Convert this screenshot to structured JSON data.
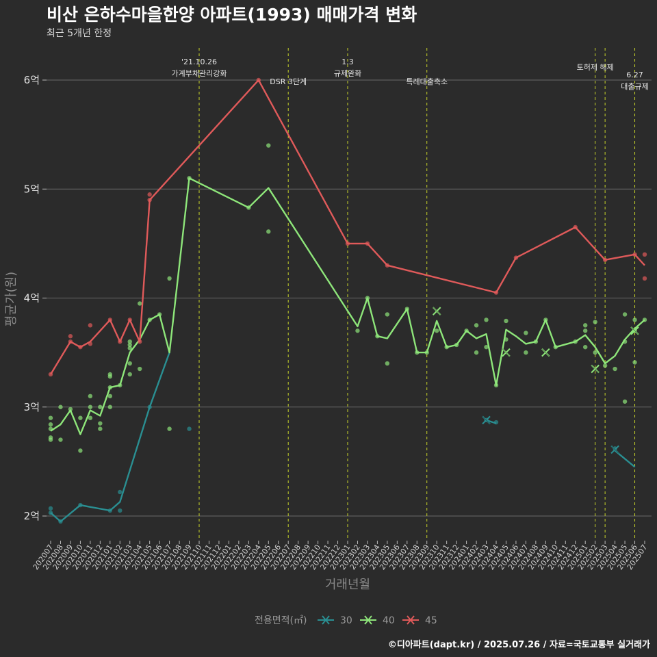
{
  "title": "비산 은하수마을한양 아파트(1993) 매매가격 변화",
  "subtitle": "최근 5개년 한정",
  "caption": "©디아파트(dapt.kr) / 2025.07.26 / 자료=국토교통부 실거래가",
  "chart_data": {
    "type": "line",
    "xlabel": "거래년월",
    "ylabel": "평균가(원)",
    "ylim": [
      1.8,
      6.3
    ],
    "y_ticks": [
      {
        "value": 2,
        "label": "2억"
      },
      {
        "value": 3,
        "label": "3억"
      },
      {
        "value": 4,
        "label": "4억"
      },
      {
        "value": 5,
        "label": "5억"
      },
      {
        "value": 6,
        "label": "6억"
      }
    ],
    "categories": [
      "202007",
      "202008",
      "202009",
      "202010",
      "202011",
      "202012",
      "202101",
      "202102",
      "202103",
      "202104",
      "202105",
      "202106",
      "202107",
      "202108",
      "202109",
      "202110",
      "202111",
      "202112",
      "202201",
      "202202",
      "202203",
      "202204",
      "202205",
      "202206",
      "202207",
      "202208",
      "202209",
      "202210",
      "202211",
      "202212",
      "202301",
      "202302",
      "202303",
      "202304",
      "202305",
      "202306",
      "202307",
      "202308",
      "202309",
      "202310",
      "202311",
      "202312",
      "202401",
      "202402",
      "202403",
      "202404",
      "202405",
      "202406",
      "202407",
      "202408",
      "202409",
      "202410",
      "202411",
      "202412",
      "202501",
      "202502",
      "202503",
      "202504",
      "202505",
      "202506",
      "202507"
    ],
    "legend_title": "전용면적(㎡)",
    "series": [
      {
        "name": "30",
        "color": "#2a8f92",
        "line": [
          [
            "202007",
            2.03
          ],
          [
            "202008",
            1.95
          ],
          [
            "202010",
            2.1
          ],
          [
            "202101",
            2.05
          ],
          [
            "202102",
            2.13
          ],
          [
            "202105",
            3.0
          ],
          [
            "202107",
            3.5
          ]
        ],
        "points": [
          [
            "202007",
            2.07
          ],
          [
            "202007",
            2.03
          ],
          [
            "202008",
            1.95
          ],
          [
            "202010",
            2.1
          ],
          [
            "202101",
            2.05
          ],
          [
            "202102",
            2.22
          ],
          [
            "202102",
            2.05
          ],
          [
            "202105",
            3.0
          ],
          [
            "202109",
            2.8
          ],
          [
            "202403",
            2.88
          ],
          [
            "202404",
            2.86
          ],
          [
            "202504",
            2.62
          ]
        ],
        "line2": [
          [
            "202403",
            2.88
          ],
          [
            "202404",
            2.85
          ]
        ],
        "line3": [
          [
            "202504",
            2.6
          ],
          [
            "202506",
            2.45
          ]
        ],
        "crosses": [
          [
            "202403",
            2.88
          ],
          [
            "202504",
            2.61
          ]
        ]
      },
      {
        "name": "40",
        "color": "#8ee67a",
        "line": [
          [
            "202007",
            2.78
          ],
          [
            "202008",
            2.84
          ],
          [
            "202009",
            2.97
          ],
          [
            "202010",
            2.75
          ],
          [
            "202011",
            2.97
          ],
          [
            "202012",
            2.92
          ],
          [
            "202101",
            3.18
          ],
          [
            "202102",
            3.2
          ],
          [
            "202103",
            3.5
          ],
          [
            "202104",
            3.62
          ],
          [
            "202105",
            3.8
          ],
          [
            "202106",
            3.85
          ],
          [
            "202107",
            3.5
          ],
          [
            "202109",
            5.1
          ],
          [
            "202203",
            4.83
          ],
          [
            "202205",
            5.01
          ],
          [
            "202302",
            3.74
          ],
          [
            "202303",
            4.0
          ],
          [
            "202304",
            3.65
          ],
          [
            "202305",
            3.63
          ],
          [
            "202307",
            3.9
          ],
          [
            "202308",
            3.5
          ],
          [
            "202309",
            3.5
          ],
          [
            "202310",
            3.79
          ],
          [
            "202311",
            3.55
          ],
          [
            "202312",
            3.57
          ],
          [
            "202401",
            3.7
          ],
          [
            "202402",
            3.63
          ],
          [
            "202403",
            3.67
          ],
          [
            "202404",
            3.2
          ],
          [
            "202405",
            3.71
          ],
          [
            "202406",
            3.65
          ],
          [
            "202407",
            3.58
          ],
          [
            "202408",
            3.6
          ],
          [
            "202409",
            3.8
          ],
          [
            "202410",
            3.55
          ],
          [
            "202412",
            3.6
          ],
          [
            "202501",
            3.66
          ],
          [
            "202502",
            3.55
          ],
          [
            "202503",
            3.4
          ],
          [
            "202504",
            3.47
          ],
          [
            "202505",
            3.62
          ],
          [
            "202506",
            3.72
          ],
          [
            "202507",
            3.8
          ]
        ],
        "points": [
          [
            "202007",
            2.9
          ],
          [
            "202007",
            2.84
          ],
          [
            "202007",
            2.8
          ],
          [
            "202007",
            2.72
          ],
          [
            "202007",
            2.7
          ],
          [
            "202008",
            3.0
          ],
          [
            "202008",
            2.7
          ],
          [
            "202009",
            2.98
          ],
          [
            "202010",
            2.9
          ],
          [
            "202010",
            2.6
          ],
          [
            "202011",
            3.1
          ],
          [
            "202011",
            3.0
          ],
          [
            "202011",
            2.9
          ],
          [
            "202012",
            3.0
          ],
          [
            "202012",
            2.85
          ],
          [
            "202012",
            2.8
          ],
          [
            "202101",
            3.3
          ],
          [
            "202101",
            3.28
          ],
          [
            "202101",
            3.18
          ],
          [
            "202101",
            3.1
          ],
          [
            "202101",
            3.0
          ],
          [
            "202102",
            3.2
          ],
          [
            "202103",
            3.6
          ],
          [
            "202103",
            3.57
          ],
          [
            "202103",
            3.54
          ],
          [
            "202103",
            3.4
          ],
          [
            "202103",
            3.3
          ],
          [
            "202104",
            3.95
          ],
          [
            "202104",
            3.35
          ],
          [
            "202105",
            3.8
          ],
          [
            "202106",
            3.85
          ],
          [
            "202107",
            4.18
          ],
          [
            "202107",
            2.8
          ],
          [
            "202109",
            5.1
          ],
          [
            "202203",
            4.83
          ],
          [
            "202205",
            5.4
          ],
          [
            "202205",
            4.61
          ],
          [
            "202302",
            3.7
          ],
          [
            "202303",
            4.0
          ],
          [
            "202304",
            3.65
          ],
          [
            "202305",
            3.85
          ],
          [
            "202305",
            3.4
          ],
          [
            "202307",
            3.9
          ],
          [
            "202308",
            3.5
          ],
          [
            "202309",
            3.5
          ],
          [
            "202310",
            3.7
          ],
          [
            "202311",
            3.55
          ],
          [
            "202312",
            3.57
          ],
          [
            "202401",
            3.7
          ],
          [
            "202402",
            3.75
          ],
          [
            "202402",
            3.5
          ],
          [
            "202403",
            3.8
          ],
          [
            "202403",
            3.55
          ],
          [
            "202404",
            3.2
          ],
          [
            "202405",
            3.79
          ],
          [
            "202405",
            3.62
          ],
          [
            "202407",
            3.68
          ],
          [
            "202407",
            3.5
          ],
          [
            "202408",
            3.6
          ],
          [
            "202409",
            3.8
          ],
          [
            "202410",
            3.55
          ],
          [
            "202412",
            3.6
          ],
          [
            "202501",
            3.75
          ],
          [
            "202501",
            3.7
          ],
          [
            "202501",
            3.55
          ],
          [
            "202502",
            3.78
          ],
          [
            "202502",
            3.5
          ],
          [
            "202503",
            3.38
          ],
          [
            "202504",
            3.35
          ],
          [
            "202505",
            3.85
          ],
          [
            "202505",
            3.6
          ],
          [
            "202505",
            3.05
          ],
          [
            "202506",
            3.8
          ],
          [
            "202506",
            3.7
          ],
          [
            "202506",
            3.41
          ],
          [
            "202507",
            3.8
          ]
        ],
        "crosses": [
          [
            "202310",
            3.88
          ],
          [
            "202405",
            3.5
          ],
          [
            "202409",
            3.5
          ],
          [
            "202502",
            3.35
          ],
          [
            "202506",
            3.7
          ]
        ]
      },
      {
        "name": "45",
        "color": "#e05a5a",
        "line": [
          [
            "202007",
            3.3
          ],
          [
            "202009",
            3.6
          ],
          [
            "202010",
            3.55
          ],
          [
            "202011",
            3.6
          ],
          [
            "202101",
            3.8
          ],
          [
            "202102",
            3.6
          ],
          [
            "202103",
            3.8
          ],
          [
            "202104",
            3.6
          ],
          [
            "202105",
            4.9
          ],
          [
            "202204",
            6.0
          ],
          [
            "202301",
            4.5
          ],
          [
            "202303",
            4.5
          ],
          [
            "202305",
            4.3
          ],
          [
            "202404",
            4.05
          ],
          [
            "202406",
            4.37
          ],
          [
            "202412",
            4.65
          ],
          [
            "202503",
            4.35
          ],
          [
            "202506",
            4.4
          ],
          [
            "202507",
            4.3
          ]
        ],
        "points": [
          [
            "202007",
            3.3
          ],
          [
            "202009",
            3.65
          ],
          [
            "202009",
            3.6
          ],
          [
            "202010",
            3.55
          ],
          [
            "202011",
            3.75
          ],
          [
            "202011",
            3.58
          ],
          [
            "202101",
            3.8
          ],
          [
            "202102",
            3.6
          ],
          [
            "202103",
            3.8
          ],
          [
            "202104",
            3.6
          ],
          [
            "202105",
            4.95
          ],
          [
            "202105",
            4.9
          ],
          [
            "202204",
            6.0
          ],
          [
            "202301",
            4.5
          ],
          [
            "202303",
            4.5
          ],
          [
            "202305",
            4.3
          ],
          [
            "202404",
            4.05
          ],
          [
            "202406",
            4.37
          ],
          [
            "202412",
            4.65
          ],
          [
            "202503",
            4.35
          ],
          [
            "202506",
            4.4
          ],
          [
            "202507",
            4.4
          ],
          [
            "202507",
            4.18
          ]
        ]
      }
    ],
    "events": [
      {
        "x": "202110",
        "lines": [
          "'21.10.26",
          "가계부채관리강화"
        ]
      },
      {
        "x": "202207",
        "lines": [
          "DSR 3단계"
        ]
      },
      {
        "x": "202301",
        "lines": [
          "1.3",
          "규제완화"
        ]
      },
      {
        "x": "202309",
        "lines": [
          "특례대출축소"
        ]
      },
      {
        "x": "202502",
        "lines": [
          "토허제 해제"
        ]
      },
      {
        "x": "202503",
        "lines": [
          ""
        ]
      },
      {
        "x": "202506",
        "lines": [
          "6.27",
          "대출규제"
        ]
      }
    ]
  }
}
